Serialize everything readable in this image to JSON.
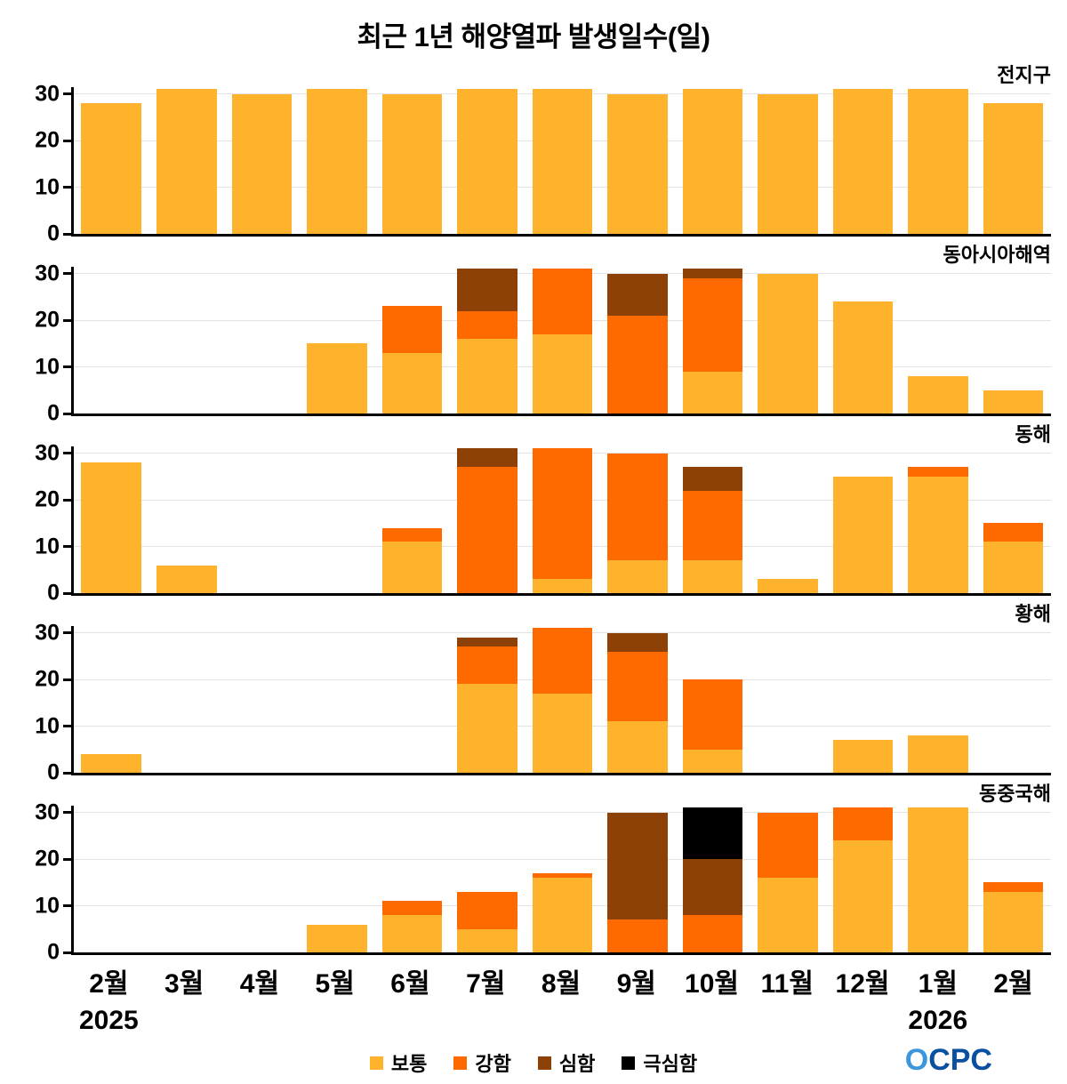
{
  "title": "최근 1년 해양열파 발생일수(일)",
  "legend": [
    {
      "label": "보통",
      "color": "#FFB32C"
    },
    {
      "label": "강함",
      "color": "#FF6A00"
    },
    {
      "label": "심함",
      "color": "#8E4106"
    },
    {
      "label": "극심함",
      "color": "#000000"
    }
  ],
  "y_ticks": [
    0,
    10,
    20,
    30
  ],
  "ymax": 32,
  "x_years": [
    {
      "index": 0,
      "label": "2025"
    },
    {
      "index": 11,
      "label": "2026"
    }
  ],
  "logo": {
    "first": "O",
    "rest": "CPC"
  },
  "chart_data": {
    "type": "bar",
    "stacked": true,
    "categories": [
      "2월",
      "3월",
      "4월",
      "5월",
      "6월",
      "7월",
      "8월",
      "9월",
      "10월",
      "11월",
      "12월",
      "1월",
      "2월"
    ],
    "ylim": [
      0,
      32
    ],
    "grid": true,
    "legend_position": "bottom",
    "panels": [
      {
        "title": "전지구",
        "series": [
          {
            "name": "보통",
            "values": [
              28,
              31,
              30,
              31,
              30,
              31,
              31,
              30,
              31,
              30,
              31,
              31,
              28
            ]
          },
          {
            "name": "강함",
            "values": [
              0,
              0,
              0,
              0,
              0,
              0,
              0,
              0,
              0,
              0,
              0,
              0,
              0
            ]
          },
          {
            "name": "심함",
            "values": [
              0,
              0,
              0,
              0,
              0,
              0,
              0,
              0,
              0,
              0,
              0,
              0,
              0
            ]
          },
          {
            "name": "극심함",
            "values": [
              0,
              0,
              0,
              0,
              0,
              0,
              0,
              0,
              0,
              0,
              0,
              0,
              0
            ]
          }
        ]
      },
      {
        "title": "동아시아해역",
        "series": [
          {
            "name": "보통",
            "values": [
              0,
              0,
              0,
              15,
              13,
              16,
              17,
              0,
              9,
              30,
              24,
              8,
              5
            ]
          },
          {
            "name": "강함",
            "values": [
              0,
              0,
              0,
              0,
              10,
              6,
              14,
              21,
              20,
              0,
              0,
              0,
              0
            ]
          },
          {
            "name": "심함",
            "values": [
              0,
              0,
              0,
              0,
              0,
              9,
              0,
              9,
              2,
              0,
              0,
              0,
              0
            ]
          },
          {
            "name": "극심함",
            "values": [
              0,
              0,
              0,
              0,
              0,
              0,
              0,
              0,
              0,
              0,
              0,
              0,
              0
            ]
          }
        ]
      },
      {
        "title": "동해",
        "series": [
          {
            "name": "보통",
            "values": [
              28,
              6,
              0,
              0,
              11,
              0,
              3,
              7,
              7,
              3,
              25,
              25,
              11
            ]
          },
          {
            "name": "강함",
            "values": [
              0,
              0,
              0,
              0,
              3,
              27,
              28,
              23,
              15,
              0,
              0,
              2,
              4
            ]
          },
          {
            "name": "심함",
            "values": [
              0,
              0,
              0,
              0,
              0,
              4,
              0,
              0,
              5,
              0,
              0,
              0,
              0
            ]
          },
          {
            "name": "극심함",
            "values": [
              0,
              0,
              0,
              0,
              0,
              0,
              0,
              0,
              0,
              0,
              0,
              0,
              0
            ]
          }
        ]
      },
      {
        "title": "황해",
        "series": [
          {
            "name": "보통",
            "values": [
              4,
              0,
              0,
              0,
              0,
              19,
              17,
              11,
              5,
              0,
              7,
              8,
              0
            ]
          },
          {
            "name": "강함",
            "values": [
              0,
              0,
              0,
              0,
              0,
              8,
              14,
              15,
              15,
              0,
              0,
              0,
              0
            ]
          },
          {
            "name": "심함",
            "values": [
              0,
              0,
              0,
              0,
              0,
              2,
              0,
              4,
              0,
              0,
              0,
              0,
              0
            ]
          },
          {
            "name": "극심함",
            "values": [
              0,
              0,
              0,
              0,
              0,
              0,
              0,
              0,
              0,
              0,
              0,
              0,
              0
            ]
          }
        ]
      },
      {
        "title": "동중국해",
        "series": [
          {
            "name": "보통",
            "values": [
              0,
              0,
              0,
              6,
              8,
              5,
              16,
              0,
              0,
              16,
              24,
              31,
              13
            ]
          },
          {
            "name": "강함",
            "values": [
              0,
              0,
              0,
              0,
              3,
              8,
              1,
              7,
              8,
              14,
              7,
              0,
              2
            ]
          },
          {
            "name": "심함",
            "values": [
              0,
              0,
              0,
              0,
              0,
              0,
              0,
              23,
              12,
              0,
              0,
              0,
              0
            ]
          },
          {
            "name": "극심함",
            "values": [
              0,
              0,
              0,
              0,
              0,
              0,
              0,
              0,
              11,
              0,
              0,
              0,
              0
            ]
          }
        ]
      }
    ]
  }
}
